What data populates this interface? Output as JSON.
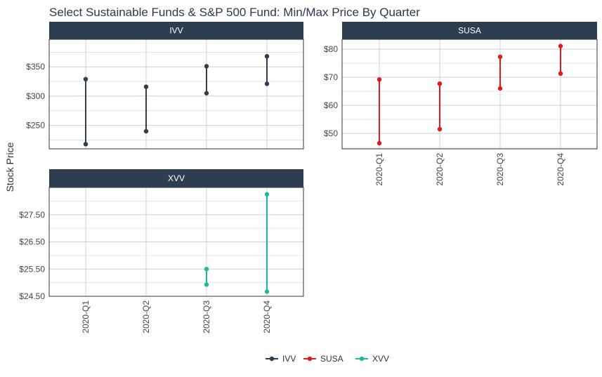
{
  "chart_data": {
    "type": "line",
    "title": "Select Sustainable Funds & S&P 500 Fund: Min/Max Price By Quarter",
    "ylabel": "Stock Price",
    "xlabel": "",
    "categories": [
      "2020-Q1",
      "2020-Q2",
      "2020-Q3",
      "2020-Q4"
    ],
    "legend": {
      "position": "bottom",
      "entries": [
        "IVV",
        "SUSA",
        "XVV"
      ]
    },
    "panels": [
      {
        "name": "IVV",
        "color": "#2c3e50",
        "ylim": [
          210,
          397
        ],
        "yticks": [
          250,
          300,
          350
        ],
        "ytick_labels": [
          "$250",
          "$300",
          "$350"
        ],
        "show_x_ticks": false,
        "min": [
          218,
          240,
          305,
          321
        ],
        "max": [
          329,
          316,
          351,
          368
        ]
      },
      {
        "name": "SUSA",
        "color": "#e31a1c",
        "ylim": [
          44.5,
          83.5
        ],
        "yticks": [
          50,
          60,
          70,
          80
        ],
        "ytick_labels": [
          "$50",
          "$60",
          "$70",
          "$80"
        ],
        "show_x_ticks": true,
        "min": [
          46.5,
          51.5,
          66,
          71.3
        ],
        "max": [
          69.2,
          67.7,
          77.3,
          81.1
        ]
      },
      {
        "name": "XVV",
        "color": "#1abc9c",
        "ylim": [
          24.5,
          28.5
        ],
        "yticks": [
          24.5,
          25.5,
          26.5,
          27.5
        ],
        "ytick_labels": [
          "$24.50",
          "$25.50",
          "$26.50",
          "$27.50"
        ],
        "show_x_ticks": true,
        "min": [
          null,
          null,
          24.93,
          24.67
        ],
        "max": [
          null,
          null,
          25.5,
          28.25
        ]
      }
    ]
  },
  "colors": {
    "strip_bg": "#2c3e50",
    "grid": "#d0d0d0",
    "panel_border": "#333333"
  }
}
